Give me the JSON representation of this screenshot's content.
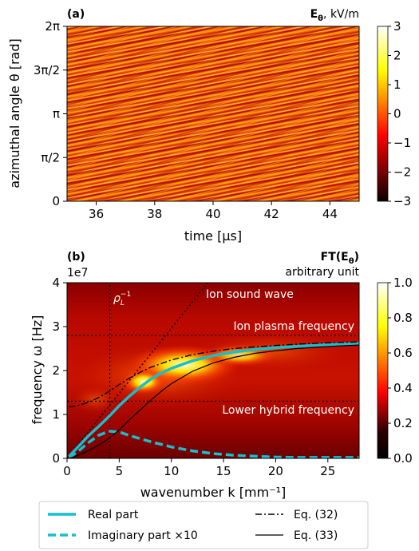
{
  "chart_data": [
    {
      "type": "heatmap",
      "panel_label": "(a)",
      "title_right": {
        "bold": "E",
        "sub": "θ",
        "rest": ", kV/m"
      },
      "xlabel": "time [μs]",
      "ylabel": "azimuthal angle θ [rad]",
      "xlim": [
        35,
        45
      ],
      "ylim": [
        0,
        6.2832
      ],
      "xticks": [
        {
          "value": 36,
          "label": "36"
        },
        {
          "value": 38,
          "label": "38"
        },
        {
          "value": 40,
          "label": "40"
        },
        {
          "value": 42,
          "label": "42"
        },
        {
          "value": 44,
          "label": "44"
        }
      ],
      "yticks": [
        {
          "value": 0,
          "label": "0"
        },
        {
          "value": 1.5708,
          "label": "π/2"
        },
        {
          "value": 3.1416,
          "label": "π"
        },
        {
          "value": 4.7124,
          "label": "3π/2"
        },
        {
          "value": 6.2832,
          "label": "2π"
        }
      ],
      "colorbar": {
        "range": [
          -3,
          3
        ],
        "ticks": [
          {
            "value": 3,
            "label": "3"
          },
          {
            "value": 2,
            "label": "2"
          },
          {
            "value": 1,
            "label": "1"
          },
          {
            "value": 0,
            "label": "0"
          },
          {
            "value": -1,
            "label": "−1"
          },
          {
            "value": -2,
            "label": "−2"
          },
          {
            "value": -3,
            "label": "−3"
          }
        ]
      },
      "colormap": "hot"
    },
    {
      "type": "heatmap",
      "panel_label": "(b)",
      "title_right": {
        "bold": "FT(E",
        "sub": "θ",
        "close": ")"
      },
      "subtitle_right": "arbitrary unit",
      "xlabel": "wavenumber k [mm⁻¹]",
      "ylabel": "frequency ω [Hz]",
      "y_multiplier": "1e7",
      "xlim": [
        0,
        28
      ],
      "ylim": [
        0,
        4
      ],
      "xticks": [
        {
          "value": 0,
          "label": "0"
        },
        {
          "value": 5,
          "label": "5"
        },
        {
          "value": 10,
          "label": "10"
        },
        {
          "value": 15,
          "label": "15"
        },
        {
          "value": 20,
          "label": "20"
        },
        {
          "value": 25,
          "label": "25"
        }
      ],
      "yticks": [
        {
          "value": 0,
          "label": "0"
        },
        {
          "value": 1,
          "label": "1"
        },
        {
          "value": 2,
          "label": "2"
        },
        {
          "value": 3,
          "label": "3"
        },
        {
          "value": 4,
          "label": "4"
        }
      ],
      "colorbar": {
        "range": [
          0,
          1
        ],
        "ticks": [
          {
            "value": 1.0,
            "label": "1.0"
          },
          {
            "value": 0.8,
            "label": "0.8"
          },
          {
            "value": 0.6,
            "label": "0.6"
          },
          {
            "value": 0.4,
            "label": "0.4"
          },
          {
            "value": 0.2,
            "label": "0.2"
          },
          {
            "value": 0.0,
            "label": "0.0"
          }
        ]
      },
      "colormap": "hot",
      "annotations": [
        {
          "text": "ρ",
          "sub": "L",
          "sup": "−1"
        },
        {
          "text": "Ion sound wave"
        },
        {
          "text": "Ion plasma frequency"
        },
        {
          "text": "Lower hybrid frequency"
        }
      ],
      "reference_lines": {
        "ion_plasma_frequency": 2.8,
        "lower_hybrid_frequency": 1.3,
        "inverse_larmor_radius_k": 4.1
      },
      "ion_sound_wave": {
        "x": [
          0,
          13.5
        ],
        "y": [
          0,
          4
        ]
      },
      "series": [
        {
          "name": "Real part",
          "style": "solid-thick",
          "color": "#17becf",
          "x": [
            0.2,
            1,
            2,
            3,
            4,
            5,
            6,
            7,
            8,
            9,
            10,
            12,
            14,
            16,
            18,
            20,
            22,
            24,
            26,
            28
          ],
          "y": [
            0.05,
            0.25,
            0.5,
            0.72,
            0.95,
            1.2,
            1.42,
            1.62,
            1.8,
            1.94,
            2.05,
            2.22,
            2.34,
            2.42,
            2.48,
            2.52,
            2.55,
            2.58,
            2.6,
            2.62
          ]
        },
        {
          "name": "Imaginary part ×10",
          "style": "dashed-thick",
          "color": "#17becf",
          "x": [
            0.2,
            1,
            2,
            3,
            4,
            5,
            6,
            8,
            10,
            12,
            14,
            16,
            18,
            20,
            22,
            24,
            26,
            28
          ],
          "y": [
            0.02,
            0.15,
            0.35,
            0.52,
            0.62,
            0.6,
            0.52,
            0.38,
            0.26,
            0.17,
            0.11,
            0.07,
            0.05,
            0.03,
            0.02,
            0.02,
            0.02,
            0.02
          ]
        },
        {
          "name": "Eq. (32)",
          "style": "dashdot",
          "color": "#000000",
          "x": [
            0.2,
            1,
            2,
            3,
            4,
            5,
            6,
            7,
            8,
            10,
            12,
            14,
            16,
            18,
            20,
            22,
            24,
            26,
            28
          ],
          "y": [
            1.17,
            1.2,
            1.27,
            1.38,
            1.52,
            1.68,
            1.83,
            1.96,
            2.07,
            2.24,
            2.36,
            2.44,
            2.5,
            2.54,
            2.57,
            2.6,
            2.62,
            2.64,
            2.65
          ]
        },
        {
          "name": "Eq. (33)",
          "style": "solid-thin",
          "color": "#000000",
          "x": [
            0.2,
            1,
            2,
            3,
            4,
            5,
            6,
            7,
            8,
            9,
            10,
            12,
            14,
            16,
            18,
            20,
            22,
            24,
            26,
            28
          ],
          "y": [
            0.0,
            0.06,
            0.17,
            0.3,
            0.45,
            0.65,
            0.88,
            1.1,
            1.32,
            1.52,
            1.7,
            1.98,
            2.17,
            2.3,
            2.39,
            2.45,
            2.5,
            2.53,
            2.56,
            2.58
          ]
        }
      ]
    }
  ]
}
